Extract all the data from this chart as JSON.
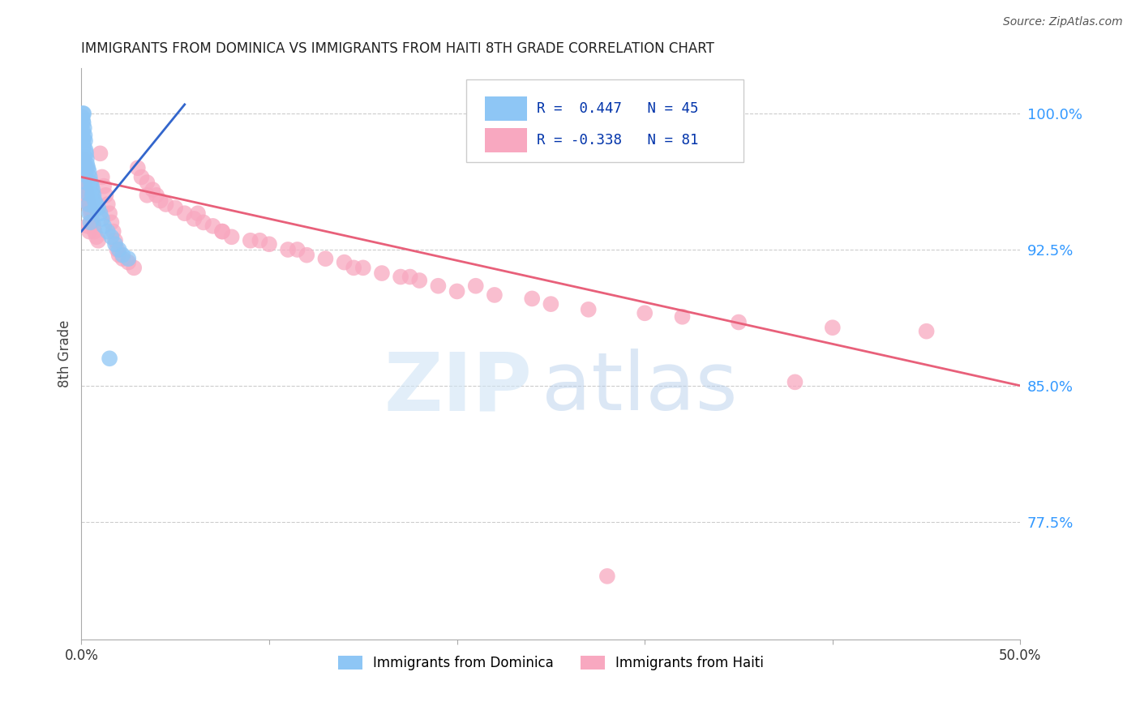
{
  "title": "IMMIGRANTS FROM DOMINICA VS IMMIGRANTS FROM HAITI 8TH GRADE CORRELATION CHART",
  "source": "Source: ZipAtlas.com",
  "ylabel": "8th Grade",
  "y_ticks": [
    77.5,
    85.0,
    92.5,
    100.0
  ],
  "y_tick_labels": [
    "77.5%",
    "85.0%",
    "92.5%",
    "100.0%"
  ],
  "x_min": 0.0,
  "x_max": 50.0,
  "y_min": 71.0,
  "y_max": 102.5,
  "r_dominica": 0.447,
  "n_dominica": 45,
  "r_haiti": -0.338,
  "n_haiti": 81,
  "color_dominica": "#8EC6F5",
  "color_haiti": "#F8A8C0",
  "trendline_dominica": "#3366CC",
  "trendline_haiti": "#E8607A",
  "legend_label_dominica": "Immigrants from Dominica",
  "legend_label_haiti": "Immigrants from Haiti",
  "watermark_zip": "ZIP",
  "watermark_atlas": "atlas",
  "dominica_x": [
    0.05,
    0.08,
    0.1,
    0.12,
    0.15,
    0.18,
    0.2,
    0.22,
    0.25,
    0.28,
    0.3,
    0.35,
    0.4,
    0.45,
    0.5,
    0.55,
    0.6,
    0.65,
    0.7,
    0.8,
    0.9,
    1.0,
    1.1,
    1.2,
    1.4,
    1.6,
    1.8,
    2.0,
    2.2,
    2.5,
    0.07,
    0.09,
    0.11,
    0.13,
    0.16,
    0.19,
    0.23,
    0.27,
    0.32,
    0.38,
    0.42,
    0.48,
    0.58,
    0.75,
    1.5
  ],
  "dominica_y": [
    99.8,
    100.0,
    99.5,
    100.0,
    99.2,
    98.8,
    98.5,
    98.0,
    97.8,
    97.5,
    97.2,
    97.0,
    96.8,
    96.5,
    96.2,
    96.0,
    95.8,
    95.5,
    95.2,
    95.0,
    94.8,
    94.5,
    94.2,
    93.8,
    93.5,
    93.2,
    92.8,
    92.5,
    92.2,
    92.0,
    99.6,
    99.0,
    98.6,
    98.2,
    97.6,
    97.0,
    96.6,
    96.2,
    95.6,
    95.0,
    94.5,
    94.0,
    95.5,
    94.8,
    86.5
  ],
  "haiti_x": [
    0.08,
    0.1,
    0.12,
    0.15,
    0.18,
    0.2,
    0.22,
    0.25,
    0.28,
    0.3,
    0.35,
    0.4,
    0.45,
    0.5,
    0.55,
    0.6,
    0.65,
    0.7,
    0.8,
    0.9,
    1.0,
    1.1,
    1.2,
    1.3,
    1.4,
    1.5,
    1.6,
    1.7,
    1.8,
    1.9,
    2.0,
    2.2,
    2.5,
    2.8,
    3.0,
    3.2,
    3.5,
    3.8,
    4.0,
    4.5,
    5.0,
    5.5,
    6.0,
    6.5,
    7.0,
    7.5,
    8.0,
    9.0,
    10.0,
    11.0,
    12.0,
    13.0,
    14.0,
    15.0,
    16.0,
    17.0,
    18.0,
    19.0,
    20.0,
    22.0,
    24.0,
    25.0,
    27.0,
    30.0,
    32.0,
    35.0,
    40.0,
    45.0,
    3.5,
    4.2,
    6.2,
    7.5,
    9.5,
    11.5,
    14.5,
    17.5,
    21.0,
    28.0,
    38.0,
    0.32,
    0.42
  ],
  "haiti_y": [
    97.5,
    97.2,
    96.8,
    96.5,
    96.2,
    96.0,
    96.5,
    95.8,
    97.0,
    95.5,
    95.2,
    95.0,
    94.8,
    94.5,
    94.2,
    94.0,
    93.8,
    93.5,
    93.2,
    93.0,
    97.8,
    96.5,
    96.0,
    95.5,
    95.0,
    94.5,
    94.0,
    93.5,
    93.0,
    92.5,
    92.2,
    92.0,
    91.8,
    91.5,
    97.0,
    96.5,
    96.2,
    95.8,
    95.5,
    95.0,
    94.8,
    94.5,
    94.2,
    94.0,
    93.8,
    93.5,
    93.2,
    93.0,
    92.8,
    92.5,
    92.2,
    92.0,
    91.8,
    91.5,
    91.2,
    91.0,
    90.8,
    90.5,
    90.2,
    90.0,
    89.8,
    89.5,
    89.2,
    89.0,
    88.8,
    88.5,
    88.2,
    88.0,
    95.5,
    95.2,
    94.5,
    93.5,
    93.0,
    92.5,
    91.5,
    91.0,
    90.5,
    74.5,
    85.2,
    93.8,
    93.5
  ],
  "haiti_trendline_x0": 0.0,
  "haiti_trendline_x1": 50.0,
  "haiti_trendline_y0": 96.5,
  "haiti_trendline_y1": 85.0,
  "dominica_trendline_x0": 0.0,
  "dominica_trendline_x1": 5.5,
  "dominica_trendline_y0": 93.5,
  "dominica_trendline_y1": 100.5
}
